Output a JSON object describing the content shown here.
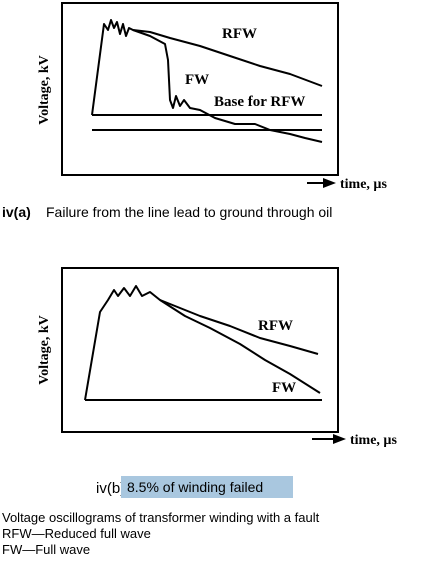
{
  "panel_a": {
    "y_axis_label": "Voltage, kV",
    "curve_labels": [
      "RFW",
      "FW",
      "Base for RFW"
    ],
    "x_axis_label": "time, µs",
    "caption_id": "iv(a)",
    "caption": "Failure from the line lead to ground through oil"
  },
  "panel_b": {
    "y_axis_label": "Voltage, kV",
    "curve_labels": [
      "RFW",
      "FW"
    ],
    "x_axis_label": "time, µs",
    "caption_id": "iv(b)",
    "caption": "8.5% of winding failed"
  },
  "footer": {
    "lines": [
      "Voltage oscillograms of transformer winding with a fault",
      "RFW—Reduced full wave",
      "FW—Full wave"
    ]
  }
}
